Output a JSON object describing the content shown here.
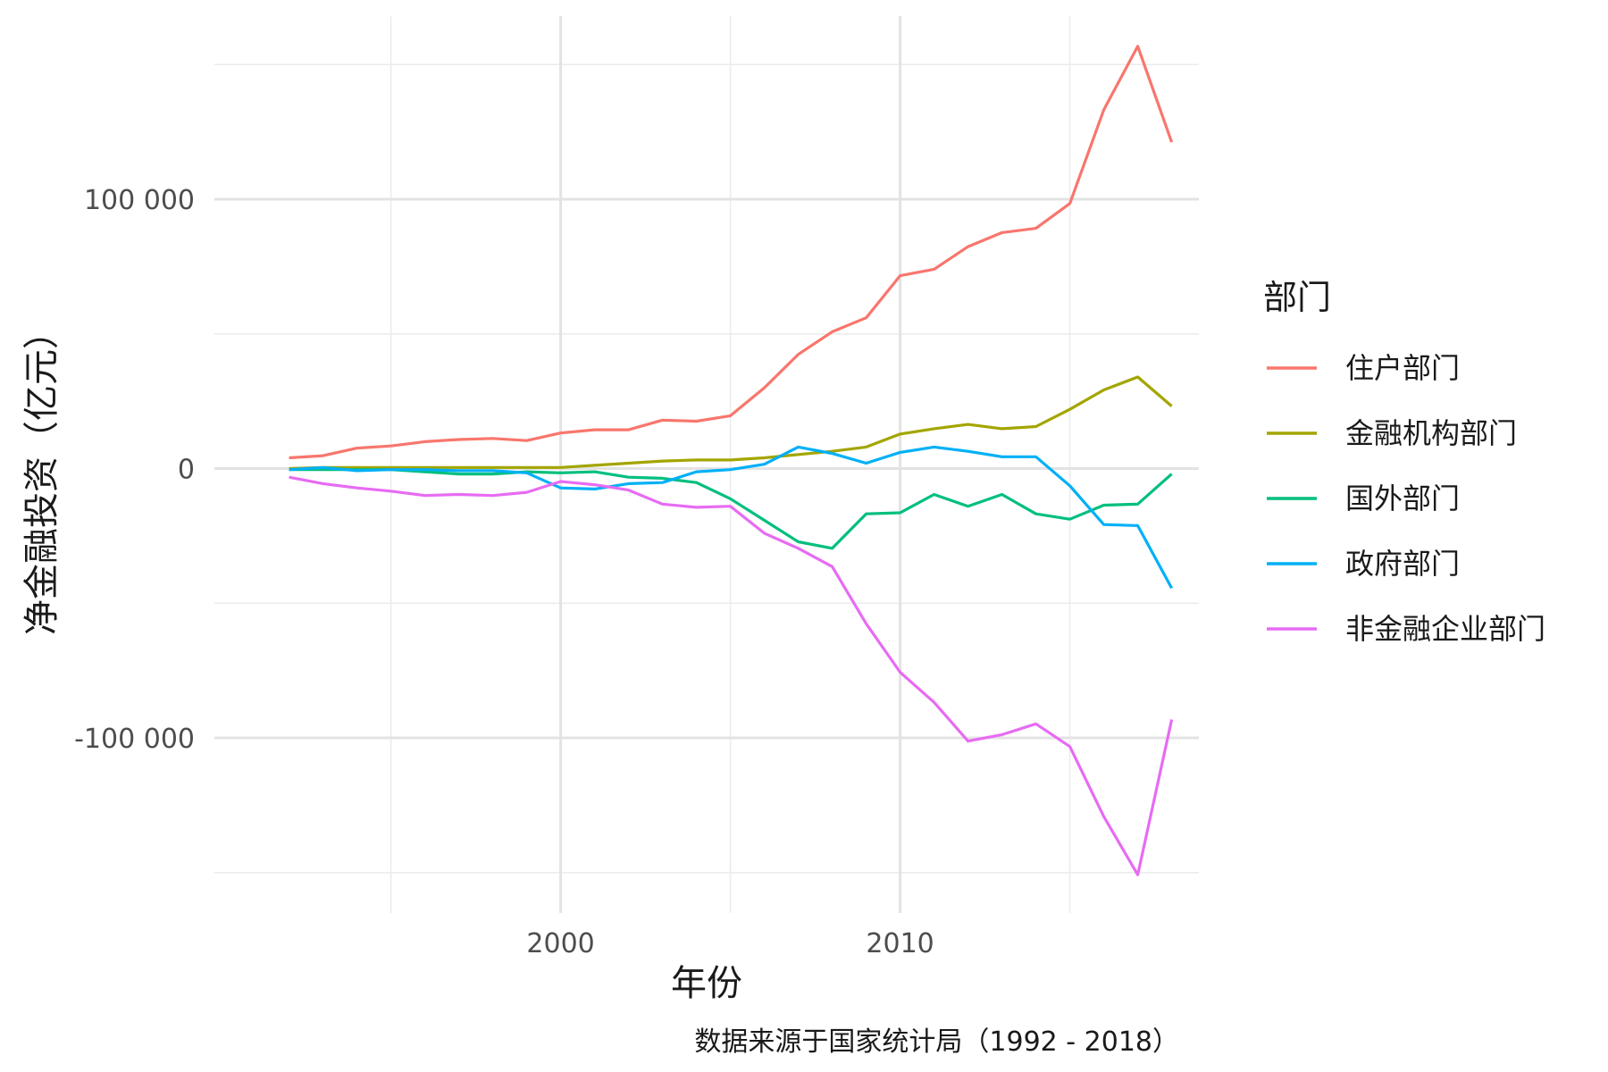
{
  "chart_data": {
    "type": "line",
    "xlabel": "年份",
    "ylabel": "净金融投资（亿元）",
    "caption": "数据来源于国家统计局（1992 - 2018）",
    "legend_title": "部门",
    "legend_position": "right",
    "grid": true,
    "xlim": [
      1989.8,
      2018.8
    ],
    "ylim": [
      -165000,
      168000
    ],
    "x_ticks": [
      2000,
      2010
    ],
    "x_tick_labels": [
      "2000",
      "2010"
    ],
    "y_ticks": [
      100000,
      0,
      -100000
    ],
    "y_tick_labels": [
      "100 000",
      "0",
      "-100 000"
    ],
    "x": [
      1992,
      1993,
      1994,
      1995,
      1996,
      1997,
      1998,
      1999,
      2000,
      2001,
      2002,
      2003,
      2004,
      2005,
      2006,
      2007,
      2008,
      2009,
      2010,
      2011,
      2012,
      2013,
      2014,
      2015,
      2016,
      2017,
      2018
    ],
    "series": [
      {
        "name": "住户部门",
        "color": "#F8766D",
        "values": [
          4000,
          4800,
          7600,
          8400,
          10000,
          10800,
          11200,
          10400,
          13200,
          14400,
          14400,
          18000,
          17600,
          19600,
          30000,
          42400,
          50800,
          56000,
          71600,
          74000,
          82400,
          87600,
          89200,
          98400,
          133200,
          156800,
          121200
        ]
      },
      {
        "name": "金融机构部门",
        "color": "#A3A500",
        "values": [
          0,
          400,
          400,
          400,
          400,
          400,
          400,
          400,
          400,
          1200,
          2000,
          2800,
          3200,
          3200,
          4000,
          5200,
          6400,
          8000,
          12800,
          14800,
          16400,
          14800,
          15600,
          22000,
          29200,
          34000,
          23200
        ]
      },
      {
        "name": "国外部门",
        "color": "#00BF7D",
        "values": [
          -400,
          -400,
          -400,
          -400,
          -1200,
          -2000,
          -2000,
          -1200,
          -1600,
          -1200,
          -3200,
          -3600,
          -5200,
          -11200,
          -19200,
          -27200,
          -29600,
          -16800,
          -16400,
          -9600,
          -14000,
          -9600,
          -16800,
          -18800,
          -13600,
          -13200,
          -2000
        ]
      },
      {
        "name": "政府部门",
        "color": "#00B0F6",
        "values": [
          -400,
          400,
          -800,
          -400,
          -400,
          -800,
          -800,
          -1600,
          -7200,
          -7600,
          -5600,
          -5200,
          -1200,
          -400,
          1600,
          8000,
          5600,
          2000,
          6000,
          8000,
          6400,
          4400,
          4400,
          -6400,
          -20800,
          -21200,
          -44400
        ]
      },
      {
        "name": "非金融企业部门",
        "color": "#E76BF3",
        "values": [
          -3200,
          -5600,
          -7200,
          -8400,
          -10000,
          -9600,
          -10000,
          -8800,
          -4800,
          -6000,
          -8000,
          -13200,
          -14400,
          -14000,
          -24000,
          -29600,
          -36400,
          -57600,
          -75600,
          -86800,
          -101200,
          -98800,
          -94800,
          -103200,
          -129200,
          -150800,
          -93200
        ]
      }
    ]
  }
}
